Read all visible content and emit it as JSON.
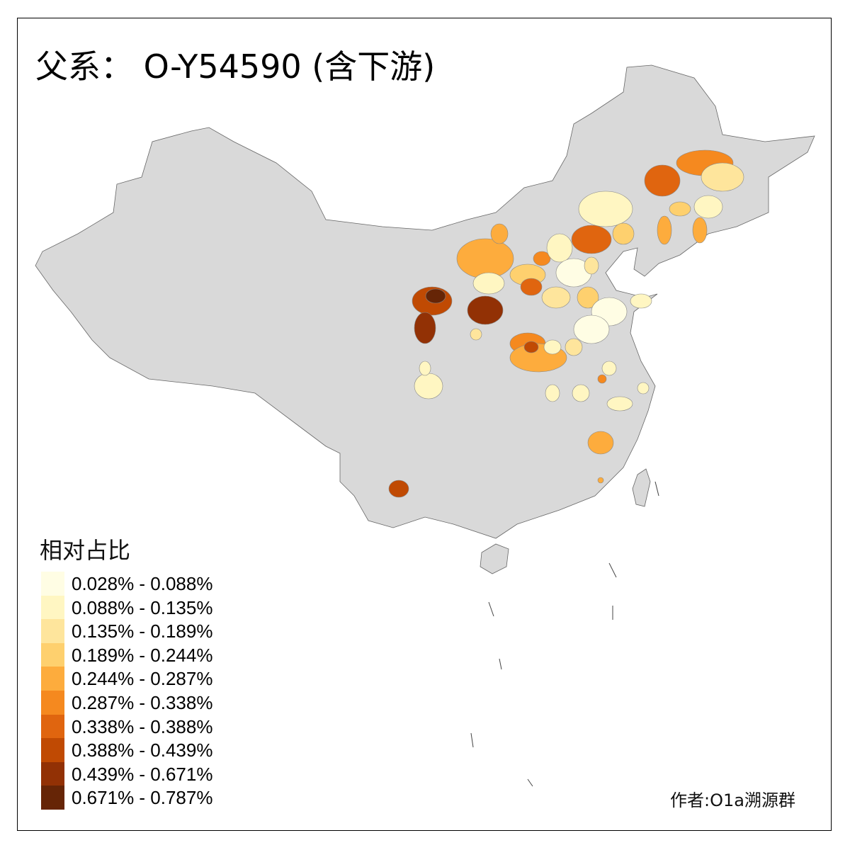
{
  "title": "父系： O-Y54590 (含下游)",
  "legend": {
    "title": "相对占比",
    "items": [
      {
        "label": "0.028% - 0.088%",
        "color": "#FFFDE4"
      },
      {
        "label": "0.088% - 0.135%",
        "color": "#FFF6C2"
      },
      {
        "label": "0.135% - 0.189%",
        "color": "#FEE59C"
      },
      {
        "label": "0.189% - 0.244%",
        "color": "#FED06E"
      },
      {
        "label": "0.244% - 0.287%",
        "color": "#FDAC3D"
      },
      {
        "label": "0.287% - 0.338%",
        "color": "#F5891F"
      },
      {
        "label": "0.338% - 0.388%",
        "color": "#E0650F"
      },
      {
        "label": "0.388% - 0.439%",
        "color": "#C04A03"
      },
      {
        "label": "0.439% - 0.671%",
        "color": "#923105"
      },
      {
        "label": "0.671% - 0.787%",
        "color": "#662506"
      }
    ]
  },
  "base_color": "#D9D9D9",
  "author": "作者:O1a溯源群"
}
